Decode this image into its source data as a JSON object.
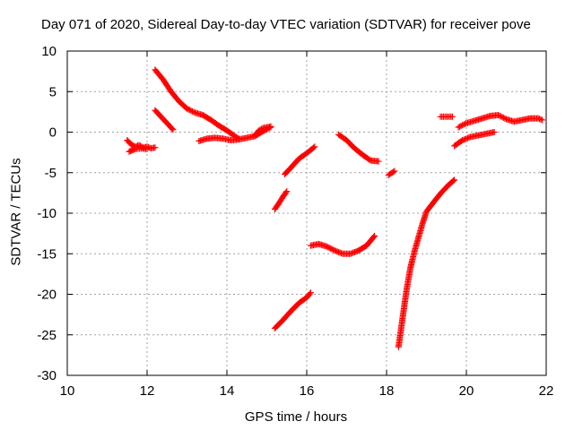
{
  "chart_data": {
    "type": "scatter",
    "title": "Day 071 of 2020, Sidereal Day-to-day VTEC variation (SDTVAR) for receiver pove",
    "xlabel": "GPS time / hours",
    "ylabel": "SDTVAR / TECUs",
    "xlim": [
      10,
      22
    ],
    "ylim": [
      -30,
      10
    ],
    "xticks": [
      10,
      12,
      14,
      16,
      18,
      20,
      22
    ],
    "yticks": [
      -30,
      -25,
      -20,
      -15,
      -10,
      -5,
      0,
      5,
      10
    ],
    "grid": true,
    "marker": "plus",
    "color": "#ff0000",
    "series": [
      {
        "points": [
          [
            11.5,
            -1.0
          ],
          [
            11.6,
            -1.5
          ],
          [
            11.7,
            -1.8
          ],
          [
            11.8,
            -1.6
          ],
          [
            11.9,
            -1.9
          ],
          [
            12.0,
            -1.8
          ],
          [
            12.1,
            -2.0
          ],
          [
            12.2,
            -1.9
          ]
        ]
      },
      {
        "points": [
          [
            11.55,
            -2.4
          ],
          [
            11.7,
            -2.1
          ],
          [
            11.85,
            -2.0
          ],
          [
            12.0,
            -2.1
          ]
        ]
      },
      {
        "points": [
          [
            12.2,
            7.7
          ],
          [
            12.4,
            6.5
          ],
          [
            12.6,
            5.0
          ],
          [
            12.8,
            3.8
          ],
          [
            13.0,
            2.9
          ],
          [
            13.2,
            2.4
          ],
          [
            13.4,
            2.1
          ],
          [
            13.6,
            1.5
          ],
          [
            13.8,
            0.8
          ],
          [
            14.0,
            0.2
          ],
          [
            14.2,
            -0.5
          ],
          [
            14.3,
            -0.8
          ]
        ]
      },
      {
        "points": [
          [
            12.2,
            2.7
          ],
          [
            12.35,
            1.9
          ],
          [
            12.5,
            1.1
          ],
          [
            12.65,
            0.3
          ]
        ]
      },
      {
        "points": [
          [
            13.3,
            -1.1
          ],
          [
            13.5,
            -0.8
          ],
          [
            13.7,
            -0.7
          ],
          [
            13.9,
            -0.8
          ],
          [
            14.1,
            -1.0
          ],
          [
            14.3,
            -0.9
          ],
          [
            14.5,
            -0.7
          ],
          [
            14.7,
            -0.5
          ],
          [
            14.9,
            0.1
          ],
          [
            15.1,
            0.6
          ]
        ]
      },
      {
        "points": [
          [
            14.7,
            -0.4
          ],
          [
            14.8,
            0.2
          ],
          [
            14.9,
            0.5
          ],
          [
            15.0,
            0.6
          ],
          [
            15.1,
            0.7
          ]
        ]
      },
      {
        "points": [
          [
            15.2,
            -9.5
          ],
          [
            15.3,
            -8.8
          ],
          [
            15.4,
            -8.0
          ],
          [
            15.5,
            -7.3
          ]
        ]
      },
      {
        "points": [
          [
            15.45,
            -5.2
          ],
          [
            15.6,
            -4.4
          ],
          [
            15.8,
            -3.3
          ],
          [
            16.0,
            -2.6
          ],
          [
            16.2,
            -1.8
          ]
        ]
      },
      {
        "points": [
          [
            15.2,
            -24.2
          ],
          [
            15.4,
            -23.2
          ],
          [
            15.6,
            -22.1
          ],
          [
            15.8,
            -21.1
          ],
          [
            16.0,
            -20.4
          ],
          [
            16.1,
            -19.8
          ]
        ]
      },
      {
        "points": [
          [
            16.1,
            -14.0
          ],
          [
            16.3,
            -13.8
          ],
          [
            16.5,
            -14.1
          ],
          [
            16.7,
            -14.6
          ],
          [
            16.9,
            -15.0
          ],
          [
            17.1,
            -15.0
          ],
          [
            17.3,
            -14.6
          ],
          [
            17.5,
            -14.0
          ],
          [
            17.7,
            -12.8
          ]
        ]
      },
      {
        "points": [
          [
            16.8,
            -0.3
          ],
          [
            17.0,
            -1.0
          ],
          [
            17.2,
            -2.0
          ],
          [
            17.4,
            -2.8
          ],
          [
            17.6,
            -3.5
          ],
          [
            17.8,
            -3.6
          ]
        ]
      },
      {
        "points": [
          [
            18.05,
            -5.3
          ],
          [
            18.2,
            -4.8
          ]
        ]
      },
      {
        "points": [
          [
            18.3,
            -26.5
          ],
          [
            18.4,
            -23.0
          ],
          [
            18.5,
            -19.5
          ],
          [
            18.6,
            -16.7
          ],
          [
            18.7,
            -14.7
          ],
          [
            18.8,
            -13.0
          ],
          [
            18.9,
            -11.3
          ],
          [
            19.0,
            -9.8
          ],
          [
            19.2,
            -8.5
          ],
          [
            19.4,
            -7.3
          ],
          [
            19.6,
            -6.3
          ],
          [
            19.7,
            -5.9
          ]
        ]
      },
      {
        "points": [
          [
            19.35,
            1.9
          ],
          [
            19.5,
            1.9
          ],
          [
            19.65,
            1.9
          ]
        ]
      },
      {
        "points": [
          [
            19.7,
            -1.7
          ],
          [
            19.9,
            -1.0
          ],
          [
            20.1,
            -0.6
          ],
          [
            20.3,
            -0.4
          ],
          [
            20.5,
            -0.2
          ],
          [
            20.7,
            0.0
          ]
        ]
      },
      {
        "points": [
          [
            19.8,
            0.6
          ],
          [
            20.0,
            1.1
          ],
          [
            20.2,
            1.4
          ],
          [
            20.4,
            1.7
          ],
          [
            20.6,
            2.0
          ],
          [
            20.8,
            2.1
          ],
          [
            21.0,
            1.6
          ],
          [
            21.2,
            1.3
          ],
          [
            21.4,
            1.5
          ],
          [
            21.6,
            1.7
          ],
          [
            21.8,
            1.7
          ],
          [
            21.9,
            1.5
          ]
        ]
      }
    ]
  }
}
